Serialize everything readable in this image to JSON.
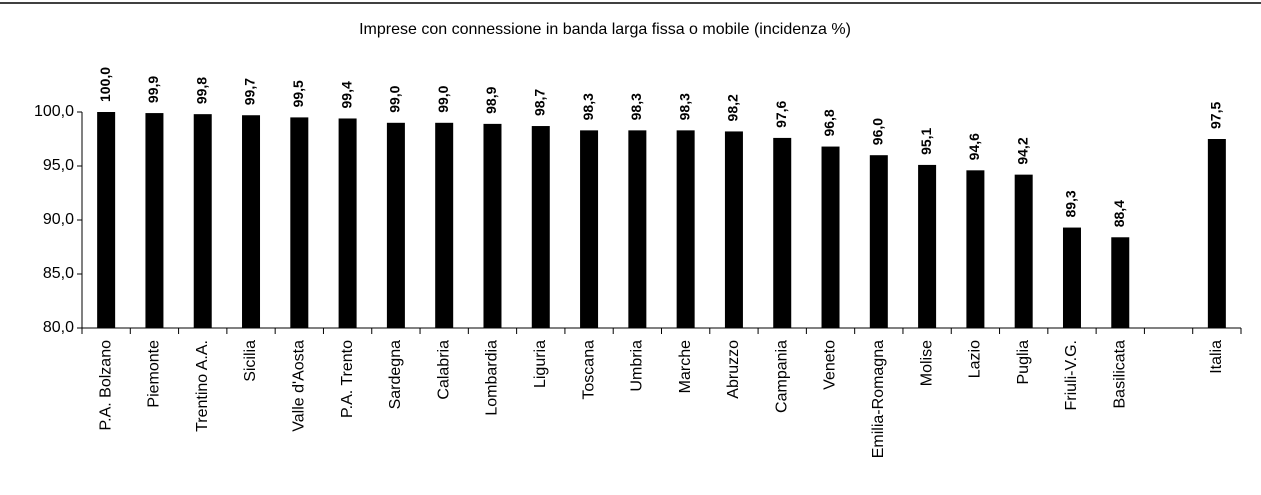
{
  "chart_data": {
    "type": "bar",
    "title": "Imprese con connessione in banda larga fissa o mobile (incidenza %)",
    "categories": [
      "P.A. Bolzano",
      "Piemonte",
      "Trentino A.A.",
      "Sicilia",
      "Valle d'Aosta",
      "P.A. Trento",
      "Sardegna",
      "Calabria",
      "Lombardia",
      "Liguria",
      "Toscana",
      "Umbria",
      "Marche",
      "Abruzzo",
      "Campania",
      "Veneto",
      "Emilia-Romagna",
      "Molise",
      "Lazio",
      "Puglia",
      "Friuli-V.G.",
      "Basilicata",
      null,
      "Italia"
    ],
    "values": [
      100.0,
      99.9,
      99.8,
      99.7,
      99.5,
      99.4,
      99.0,
      99.0,
      98.9,
      98.7,
      98.3,
      98.3,
      98.3,
      98.2,
      97.6,
      96.8,
      96.0,
      95.1,
      94.6,
      94.2,
      89.3,
      88.4,
      null,
      97.5
    ],
    "value_labels": [
      "100,0",
      "99,9",
      "99,8",
      "99,7",
      "99,5",
      "99,4",
      "99,0",
      "99,0",
      "98,9",
      "98,7",
      "98,3",
      "98,3",
      "98,3",
      "98,2",
      "97,6",
      "96,8",
      "96,0",
      "95,1",
      "94,6",
      "94,2",
      "89,3",
      "88,4",
      null,
      "97,5"
    ],
    "color": "#000000",
    "ylim": [
      80,
      100
    ],
    "yticks": [
      {
        "value": 80,
        "label": "80,0"
      },
      {
        "value": 85,
        "label": "85,0"
      },
      {
        "value": 90,
        "label": "90,0"
      },
      {
        "value": 95,
        "label": "95,0"
      },
      {
        "value": 100,
        "label": "100,0"
      }
    ],
    "grid": false
  }
}
